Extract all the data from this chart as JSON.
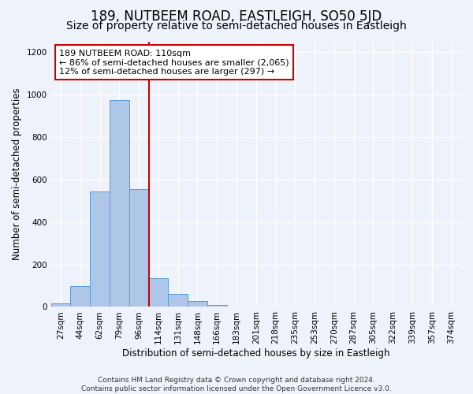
{
  "title": "189, NUTBEEM ROAD, EASTLEIGH, SO50 5JD",
  "subtitle": "Size of property relative to semi-detached houses in Eastleigh",
  "xlabel": "Distribution of semi-detached houses by size in Eastleigh",
  "ylabel": "Number of semi-detached properties",
  "annotation_line1": "189 NUTBEEM ROAD: 110sqm",
  "annotation_line2": "← 86% of semi-detached houses are smaller (2,065)",
  "annotation_line3": "12% of semi-detached houses are larger (297) →",
  "footer_line1": "Contains HM Land Registry data © Crown copyright and database right 2024.",
  "footer_line2": "Contains public sector information licensed under the Open Government Licence v3.0.",
  "bin_labels": [
    "27sqm",
    "44sqm",
    "62sqm",
    "79sqm",
    "96sqm",
    "114sqm",
    "131sqm",
    "148sqm",
    "166sqm",
    "183sqm",
    "201sqm",
    "218sqm",
    "235sqm",
    "253sqm",
    "270sqm",
    "287sqm",
    "305sqm",
    "322sqm",
    "339sqm",
    "357sqm",
    "374sqm"
  ],
  "bar_values": [
    15,
    100,
    545,
    975,
    555,
    135,
    60,
    27,
    8,
    0,
    0,
    0,
    0,
    0,
    0,
    0,
    0,
    0,
    0,
    0,
    0
  ],
  "bar_color": "#aec6e8",
  "bar_edge_color": "#5b9bd5",
  "marker_bin_index": 5,
  "marker_color": "#cc0000",
  "ylim": [
    0,
    1250
  ],
  "yticks": [
    0,
    200,
    400,
    600,
    800,
    1000,
    1200
  ],
  "background_color": "#eef2fa",
  "grid_color": "#ffffff",
  "annotation_box_color": "#ffffff",
  "annotation_box_edge_color": "#cc0000",
  "title_fontsize": 12,
  "subtitle_fontsize": 10,
  "axis_label_fontsize": 8.5,
  "tick_fontsize": 7.5,
  "annotation_fontsize": 8,
  "footer_fontsize": 6.5
}
